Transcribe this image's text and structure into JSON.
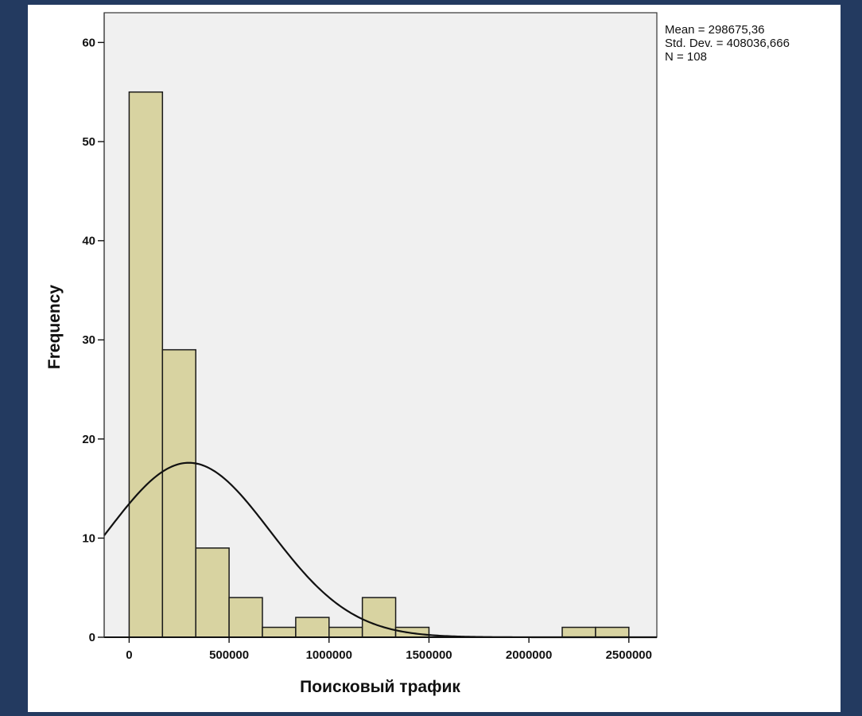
{
  "chart_data": {
    "type": "histogram",
    "xlabel": "Поисковый трафик",
    "ylabel": "Frequency",
    "x_ticks": [
      0,
      500000,
      1000000,
      1500000,
      2000000,
      2500000
    ],
    "x_tick_labels": [
      "0",
      "500000",
      "1000000",
      "1500000",
      "2000000",
      "2500000"
    ],
    "y_ticks": [
      0,
      10,
      20,
      30,
      40,
      50,
      60
    ],
    "xlim": [
      -125000,
      2640000
    ],
    "ylim": [
      0,
      63
    ],
    "bin_width": 166667,
    "bins": [
      {
        "start": 0,
        "end": 166667,
        "count": 55
      },
      {
        "start": 166667,
        "end": 333333,
        "count": 29
      },
      {
        "start": 333333,
        "end": 500000,
        "count": 9
      },
      {
        "start": 500000,
        "end": 666667,
        "count": 4
      },
      {
        "start": 666667,
        "end": 833333,
        "count": 1
      },
      {
        "start": 833333,
        "end": 1000000,
        "count": 2
      },
      {
        "start": 1000000,
        "end": 1166667,
        "count": 1
      },
      {
        "start": 1166667,
        "end": 1333333,
        "count": 4
      },
      {
        "start": 1333333,
        "end": 1500000,
        "count": 1
      },
      {
        "start": 1500000,
        "end": 1666667,
        "count": 0
      },
      {
        "start": 1666667,
        "end": 1833333,
        "count": 0
      },
      {
        "start": 1833333,
        "end": 2000000,
        "count": 0
      },
      {
        "start": 2000000,
        "end": 2166667,
        "count": 0
      },
      {
        "start": 2166667,
        "end": 2333333,
        "count": 1
      },
      {
        "start": 2333333,
        "end": 2500000,
        "count": 1
      }
    ],
    "normal_curve": {
      "mean": 298675.36,
      "std": 408036.666,
      "n": 108
    },
    "stats": {
      "mean_label": "Mean = 298675,36",
      "std_label": "Std. Dev. = 408036,666",
      "n_label": "N = 108"
    },
    "grid": false,
    "colors": {
      "bar_fill": "#d8d3a1",
      "bar_stroke": "#1a1a1a",
      "plot_background": "#f0f0f0",
      "curve": "#111111",
      "frame_background": "#233a60"
    }
  }
}
